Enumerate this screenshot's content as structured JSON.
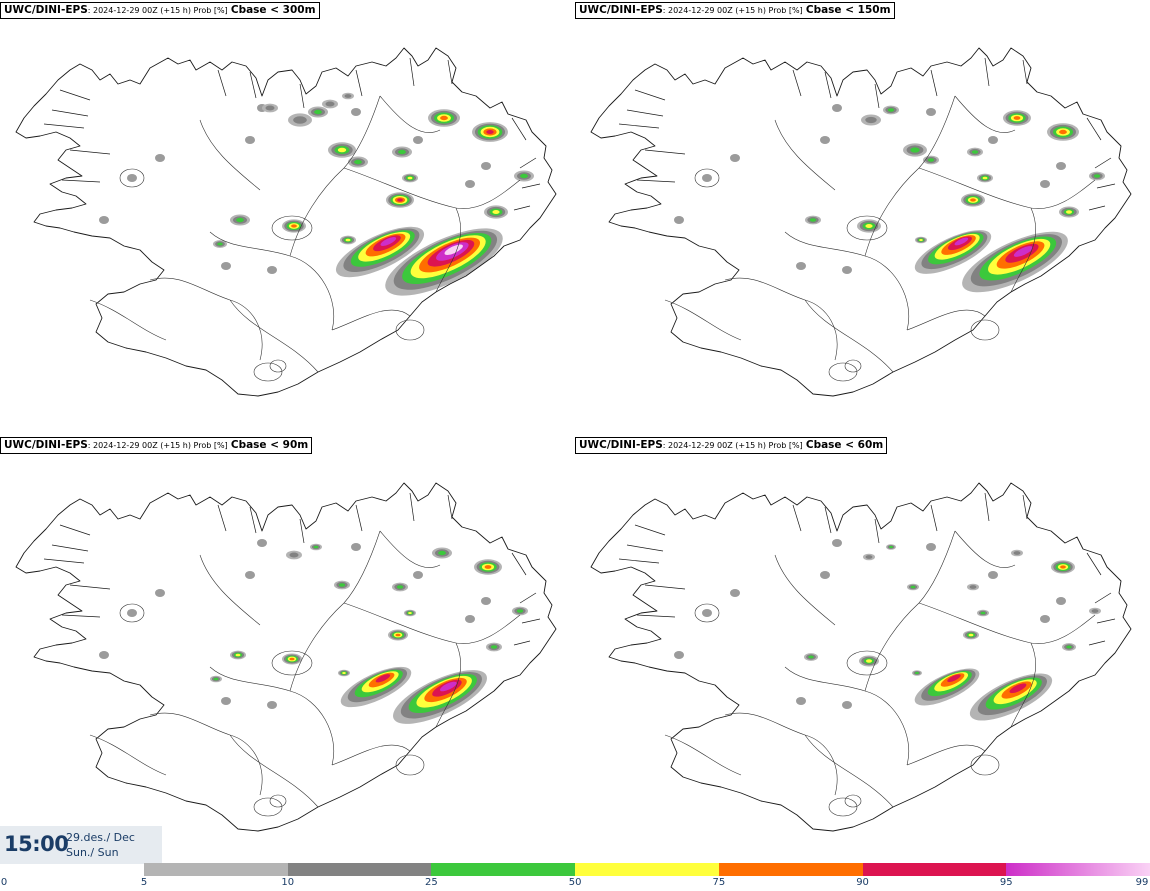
{
  "panels": [
    {
      "model": "UWC/DINI-EPS",
      "run": ": 2024-12-29 00Z (+15 h) Prob [%]",
      "threshold": "Cbase < 300m"
    },
    {
      "model": "UWC/DINI-EPS",
      "run": ": 2024-12-29 00Z (+15 h) Prob [%]",
      "threshold": "Cbase < 150m"
    },
    {
      "model": "UWC/DINI-EPS",
      "run": ": 2024-12-29 00Z (+15 h) Prob [%]",
      "threshold": "Cbase < 90m"
    },
    {
      "model": "UWC/DINI-EPS",
      "run": ": 2024-12-29 00Z (+15 h) Prob [%]",
      "threshold": "Cbase < 60m"
    }
  ],
  "valid_time": {
    "time": "15:00",
    "date": "29.des./ Dec",
    "day": "Sun./ Sun"
  },
  "colorbar": {
    "ticks": [
      "0",
      "5",
      "10",
      "25",
      "50",
      "75",
      "90",
      "95",
      "99"
    ],
    "segments": [
      {
        "from": 5,
        "to": 10,
        "color": "#b4b4b4"
      },
      {
        "from": 10,
        "to": 25,
        "color": "#828282"
      },
      {
        "from": 25,
        "to": 50,
        "color": "#3cc83c"
      },
      {
        "from": 50,
        "to": 75,
        "color": "#ffff3c"
      },
      {
        "from": 75,
        "to": 90,
        "color": "#ff6e00"
      },
      {
        "from": 90,
        "to": 95,
        "color": "#dc1450"
      },
      {
        "from": 95,
        "to": 99,
        "color": "#cd2ec8",
        "gradient_to": "#fad2f5"
      }
    ]
  }
}
